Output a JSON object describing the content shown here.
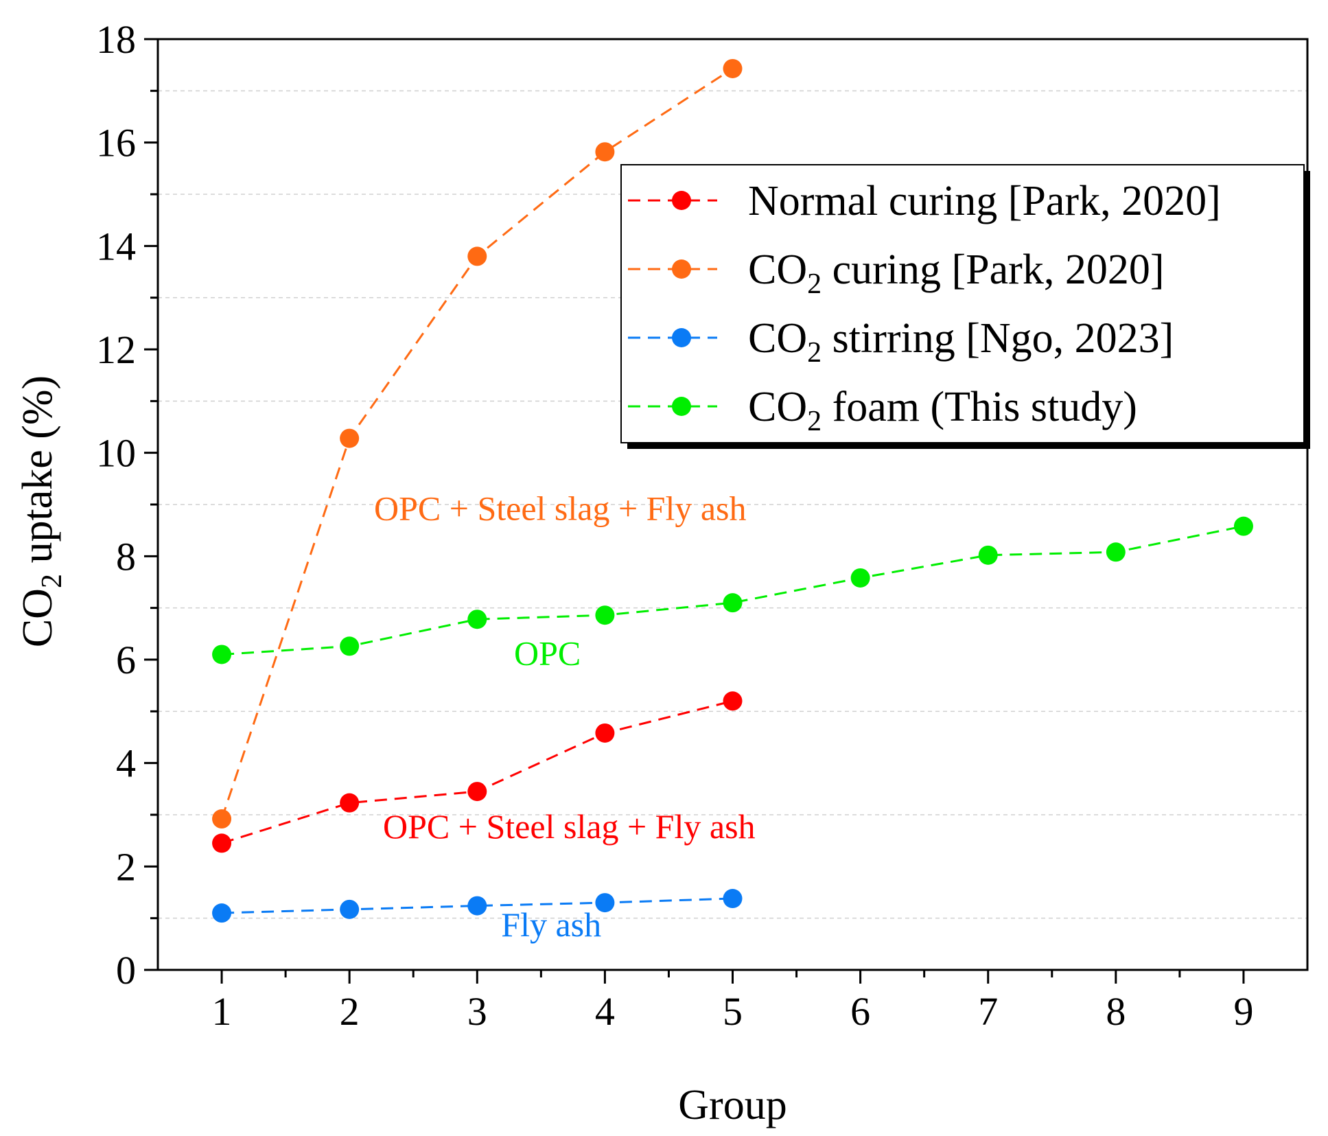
{
  "chart_data": {
    "type": "line",
    "title": "",
    "xlabel": "Group",
    "ylabel_main": "CO",
    "ylabel_sub": "2",
    "ylabel_tail": " uptake (%)",
    "xlim": [
      0.5,
      9.5
    ],
    "ylim": [
      0,
      18
    ],
    "xticks": [
      1,
      2,
      3,
      4,
      5,
      6,
      7,
      8,
      9
    ],
    "yticks": [
      0,
      2,
      4,
      6,
      8,
      10,
      12,
      14,
      16,
      18
    ],
    "grid_values": [
      1,
      3,
      5,
      7,
      9,
      11,
      13,
      15,
      17
    ],
    "series": [
      {
        "key": "normal-curing",
        "name_pre": "Normal curing [Park, 2020]",
        "name_sub": "",
        "name_post": "",
        "color": "#ff0000",
        "x": [
          1,
          2,
          3,
          4,
          5
        ],
        "values": [
          2.45,
          3.23,
          3.45,
          4.58,
          5.2
        ]
      },
      {
        "key": "co2-curing",
        "name_pre": "CO",
        "name_sub": "2",
        "name_post": " curing [Park, 2020]",
        "color": "#ff6a13",
        "x": [
          1,
          2,
          3,
          4,
          5
        ],
        "values": [
          2.92,
          10.28,
          13.8,
          15.82,
          17.43
        ]
      },
      {
        "key": "co2-stirring",
        "name_pre": "CO",
        "name_sub": "2",
        "name_post": " stirring [Ngo, 2023]",
        "color": "#0a7bf5",
        "x": [
          1,
          2,
          3,
          4,
          5
        ],
        "values": [
          1.1,
          1.17,
          1.24,
          1.3,
          1.38
        ]
      },
      {
        "key": "co2-foam",
        "name_pre": "CO",
        "name_sub": "2",
        "name_post": " foam (This study)",
        "color": "#00ee00",
        "x": [
          1,
          2,
          3,
          4,
          5,
          6,
          7,
          8,
          9
        ],
        "values": [
          6.1,
          6.26,
          6.78,
          6.86,
          7.1,
          7.58,
          8.02,
          8.08,
          8.58
        ]
      }
    ],
    "legend_position": "top-right",
    "annotations": [
      {
        "key": "orange",
        "text": "OPC + Steel slag + Fly ash",
        "color": "#ff6a13",
        "x": 3.65,
        "y": 8.7
      },
      {
        "key": "green",
        "text": "OPC",
        "color": "#00ee00",
        "x": 3.55,
        "y": 5.9
      },
      {
        "key": "red",
        "text": "OPC + Steel slag + Fly ash",
        "color": "#ff0000",
        "x": 3.72,
        "y": 2.55
      },
      {
        "key": "blue",
        "text": "Fly ash",
        "color": "#0a7bf5",
        "x": 3.58,
        "y": 0.65
      }
    ]
  }
}
